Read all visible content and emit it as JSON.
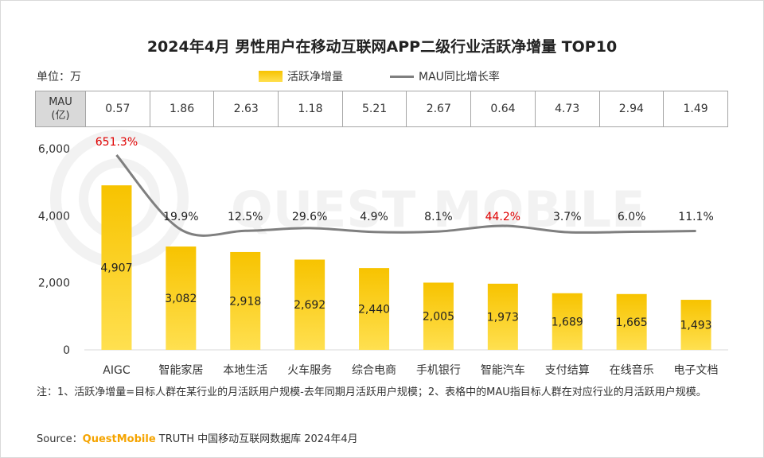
{
  "title": "2024年4月 男性用户在移动互联网APP二级行业活跃净增量 TOP10",
  "unit_label": "单位：万",
  "legend": {
    "bar": "活跃净增量",
    "line": "MAU同比增长率"
  },
  "mau_table": {
    "header": "MAU\n(亿)",
    "header_line1": "MAU",
    "header_line2": "(亿)",
    "values": [
      "0.57",
      "1.86",
      "2.63",
      "1.18",
      "5.21",
      "2.67",
      "0.64",
      "4.73",
      "2.94",
      "1.49"
    ]
  },
  "chart_data": {
    "type": "bar",
    "title": "2024年4月 男性用户在移动互联网APP二级行业活跃净增量 TOP10",
    "categories": [
      "AIGC",
      "智能家居",
      "本地生活",
      "火车服务",
      "综合电商",
      "手机银行",
      "智能汽车",
      "支付结算",
      "在线音乐",
      "电子文档"
    ],
    "series": [
      {
        "name": "活跃净增量",
        "type": "bar",
        "values": [
          4907,
          3082,
          2918,
          2692,
          2440,
          2005,
          1973,
          1689,
          1665,
          1493
        ],
        "labels": [
          "4,907",
          "3,082",
          "2,918",
          "2,692",
          "2,440",
          "2,005",
          "1,973",
          "1,689",
          "1,665",
          "1,493"
        ]
      },
      {
        "name": "MAU同比增长率",
        "type": "line",
        "values": [
          651.3,
          19.9,
          12.5,
          29.6,
          4.9,
          8.1,
          44.2,
          3.7,
          6.0,
          11.1
        ],
        "labels": [
          "651.3%",
          "19.9%",
          "12.5%",
          "29.6%",
          "4.9%",
          "8.1%",
          "44.2%",
          "3.7%",
          "6.0%",
          "11.1%"
        ],
        "highlight_indices": [
          0,
          6
        ]
      }
    ],
    "y_ticks": [
      "6,000",
      "4,000",
      "2,000",
      "0"
    ],
    "ylim": [
      0,
      6000
    ],
    "grid": false,
    "legend_position": "top-center",
    "colors": {
      "bar_top": "#f7c300",
      "bar_bottom": "#ffe050",
      "line": "#7f7f7f",
      "highlight_label": "#e00000",
      "axis": "#d9d9d9"
    }
  },
  "footnote": "注：1、活跃净增量=目标人群在某行业的月活跃用户规模-去年同期月活跃用户规模；2、表格中的MAU指目标人群在对应行业的月活跃用户规模。",
  "source": {
    "prefix": "Source：",
    "brand": "QuestMobile",
    "suffix": " TRUTH 中国移动互联网数据库 2024年4月"
  },
  "watermark": "QUEST MOBILE"
}
